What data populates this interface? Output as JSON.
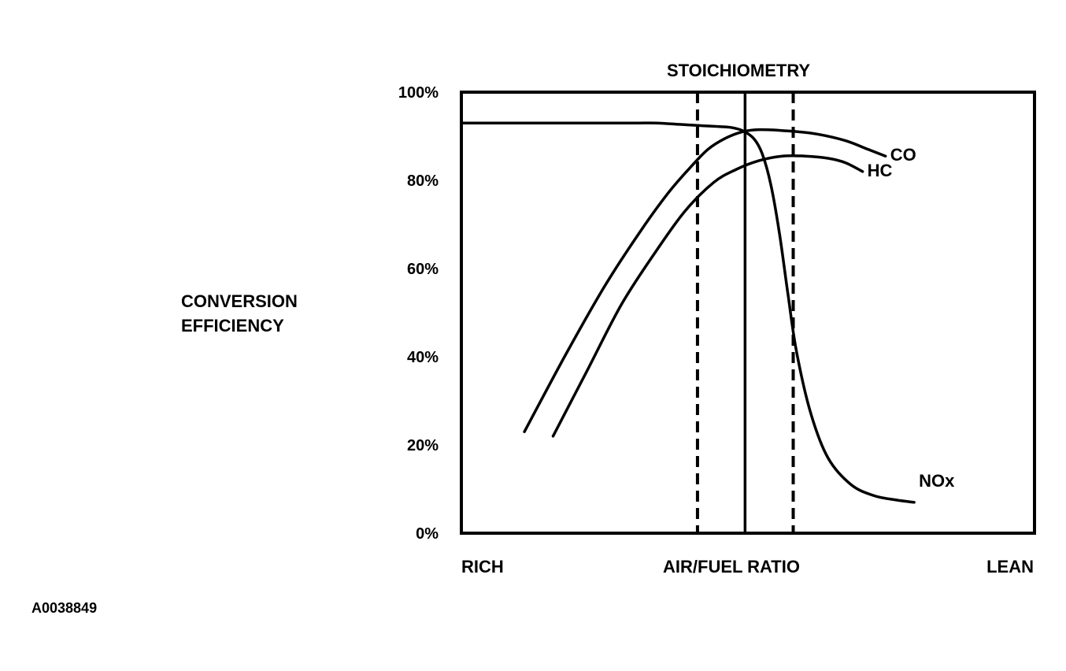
{
  "figure_id": "A0038849",
  "chart_data": {
    "type": "line",
    "title": "STOICHIOMETRY",
    "ylabel_lines": [
      "CONVERSION",
      "EFFICIENCY"
    ],
    "x_center_label": "AIR/FUEL RATIO",
    "x_left_label": "RICH",
    "x_right_label": "LEAN",
    "ylim": [
      0,
      100
    ],
    "y_ticks": [
      0,
      20,
      40,
      60,
      80,
      100
    ],
    "y_tick_labels": [
      "0%",
      "20%",
      "40%",
      "60%",
      "80%",
      "100%"
    ],
    "xlim": [
      0,
      100
    ],
    "grid": false,
    "stoich_line_x": 49.5,
    "window_lines_x": [
      41.2,
      57.9
    ],
    "series": [
      {
        "name": "CO",
        "x": [
          11,
          18,
          25,
          31,
          36,
          40,
          43,
          46,
          49,
          52,
          57,
          62,
          67,
          71,
          74
        ],
        "y": [
          23,
          40,
          56,
          68,
          77,
          83,
          87,
          89.5,
          91,
          91.5,
          91.2,
          90.5,
          89,
          87,
          85.5
        ]
      },
      {
        "name": "HC",
        "x": [
          16,
          22,
          28,
          34,
          39,
          44,
          48,
          52,
          56,
          60,
          64,
          67,
          70
        ],
        "y": [
          22,
          37,
          52,
          64,
          73,
          79.5,
          82.5,
          84.5,
          85.5,
          85.5,
          85,
          84,
          82
        ]
      },
      {
        "name": "NOx",
        "x": [
          0,
          10,
          20,
          30,
          34,
          38,
          42,
          45,
          47,
          49,
          51,
          52.5,
          54,
          55.5,
          57,
          58.5,
          61,
          64,
          68,
          72,
          76,
          79
        ],
        "y": [
          93,
          93,
          93,
          93,
          93,
          92.7,
          92.4,
          92.2,
          92,
          91.3,
          89.5,
          86,
          79,
          68,
          54,
          41,
          27,
          17,
          11,
          8.5,
          7.5,
          7
        ]
      }
    ]
  }
}
